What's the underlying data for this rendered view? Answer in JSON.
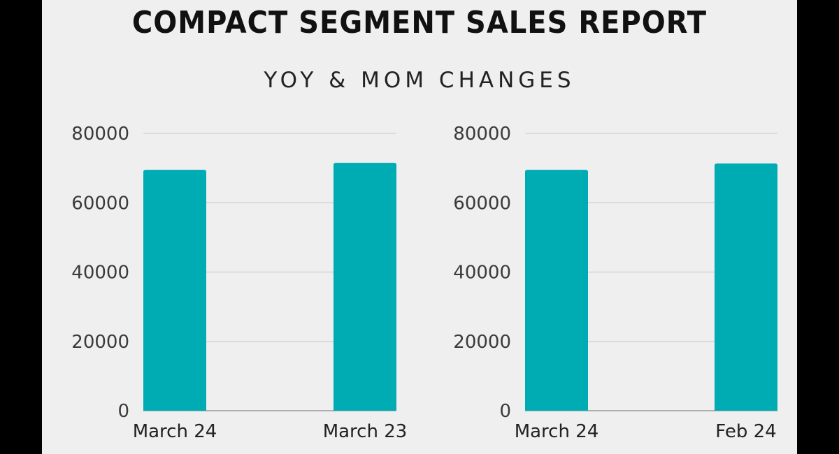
{
  "header": {
    "title": "COMPACT SEGMENT SALES REPORT",
    "subtitle": "YOY & MOM CHANGES"
  },
  "colors": {
    "bar": "#00acb3",
    "grid": "#cfcfcf",
    "background": "#efefef",
    "frame": "#000000"
  },
  "chart_data": [
    {
      "type": "bar",
      "title": "",
      "xlabel": "",
      "ylabel": "",
      "categories": [
        "March 24",
        "March 23"
      ],
      "values": [
        69500,
        71500
      ],
      "yticks": [
        "0",
        "20000",
        "40000",
        "60000",
        "80000"
      ],
      "ylim": [
        0,
        80000
      ],
      "grid": true,
      "legend": "none"
    },
    {
      "type": "bar",
      "title": "",
      "xlabel": "",
      "ylabel": "",
      "categories": [
        "March 24",
        "Feb 24"
      ],
      "values": [
        69500,
        71300
      ],
      "yticks": [
        "0",
        "20000",
        "40000",
        "60000",
        "80000"
      ],
      "ylim": [
        0,
        80000
      ],
      "grid": true,
      "legend": "none"
    }
  ]
}
